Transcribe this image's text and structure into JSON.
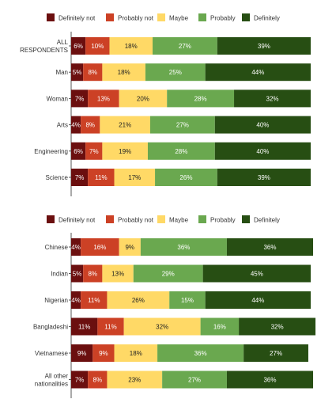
{
  "chart_data": [
    {
      "type": "bar",
      "orientation": "horizontal",
      "stacked": true,
      "unit": "%",
      "legend_position": "top",
      "categories": [
        "ALL RESPONDENTS",
        "Man",
        "Woman",
        "Arts",
        "Engineering",
        "Science"
      ],
      "category_lines": [
        [
          "ALL",
          "RESPONDENTS"
        ],
        [
          "Man"
        ],
        [
          "Woman"
        ],
        [
          "Arts"
        ],
        [
          "Engineering"
        ],
        [
          "Science"
        ]
      ],
      "series": [
        {
          "name": "Definitely not",
          "color": "#6b0f0f",
          "values": [
            6,
            5,
            7,
            4,
            6,
            7
          ]
        },
        {
          "name": "Probably not",
          "color": "#cc4125",
          "values": [
            10,
            8,
            13,
            8,
            7,
            11
          ]
        },
        {
          "name": "Maybe",
          "color": "#ffd966",
          "values": [
            18,
            18,
            20,
            21,
            19,
            17
          ]
        },
        {
          "name": "Probably",
          "color": "#6aa84f",
          "values": [
            27,
            25,
            28,
            27,
            28,
            26
          ]
        },
        {
          "name": "Definitely",
          "color": "#274e13",
          "values": [
            39,
            44,
            32,
            40,
            40,
            39
          ]
        }
      ]
    },
    {
      "type": "bar",
      "orientation": "horizontal",
      "stacked": true,
      "unit": "%",
      "legend_position": "top",
      "categories": [
        "Chinese",
        "Indian",
        "Nigerian",
        "Bangladeshi",
        "Vietnamese",
        "All other nationalities"
      ],
      "category_lines": [
        [
          "Chinese"
        ],
        [
          "Indian"
        ],
        [
          "Nigerian"
        ],
        [
          "Bangladeshi"
        ],
        [
          "Vietnamese"
        ],
        [
          "All other",
          "nationalities"
        ]
      ],
      "series": [
        {
          "name": "Definitely not",
          "color": "#6b0f0f",
          "values": [
            4,
            5,
            4,
            11,
            9,
            7
          ]
        },
        {
          "name": "Probably not",
          "color": "#cc4125",
          "values": [
            16,
            8,
            11,
            11,
            9,
            8
          ]
        },
        {
          "name": "Maybe",
          "color": "#ffd966",
          "values": [
            9,
            13,
            26,
            32,
            18,
            23
          ]
        },
        {
          "name": "Probably",
          "color": "#6aa84f",
          "values": [
            36,
            29,
            15,
            16,
            36,
            27
          ]
        },
        {
          "name": "Definitely",
          "color": "#274e13",
          "values": [
            36,
            45,
            44,
            32,
            27,
            36
          ]
        }
      ]
    }
  ]
}
